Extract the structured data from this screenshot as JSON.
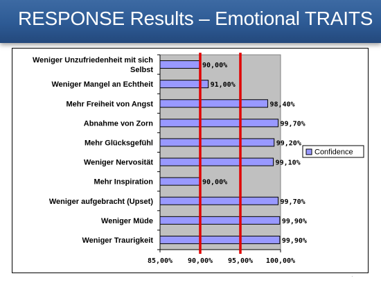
{
  "header": {
    "title": "RESPONSE Results – Emotional TRAITS"
  },
  "chart_data": {
    "type": "bar",
    "orientation": "horizontal",
    "categories": [
      [
        "Weniger Unzufriedenheit mit sich",
        "Selbst"
      ],
      [
        "Weniger Mangel an Echtheit"
      ],
      [
        "Mehr Freiheit von Angst"
      ],
      [
        "Abnahme von Zorn"
      ],
      [
        "Mehr Glücksgefühl"
      ],
      [
        "Weniger Nervosität"
      ],
      [
        "Mehr Inspiration"
      ],
      [
        "Weniger aufgebracht (Upset)"
      ],
      [
        "Weniger Müde"
      ],
      [
        "Weniger Traurigkeit"
      ]
    ],
    "series": [
      {
        "name": "Confidence",
        "values": [
          90.0,
          91.0,
          98.4,
          99.7,
          99.2,
          99.1,
          90.0,
          99.7,
          99.9,
          99.9
        ]
      }
    ],
    "data_labels": [
      "90,00%",
      "91,00%",
      "98,40%",
      "99,70%",
      "99,20%",
      "99,10%",
      "90,00%",
      "99,70%",
      "99,90%",
      "99,90%"
    ],
    "xlim": [
      85,
      100
    ],
    "xticks": [
      85,
      90,
      95,
      100
    ],
    "xtick_labels": [
      "85,00%",
      "90,00%",
      "95,00%",
      "100,00%"
    ],
    "reference_lines": [
      90,
      95
    ],
    "reference_line_color": "#e00000",
    "bar_color": "#9999ff",
    "plot_background": "#c0c0c0",
    "grid": false,
    "legend_position": "right",
    "xlabel": "",
    "ylabel": ""
  }
}
